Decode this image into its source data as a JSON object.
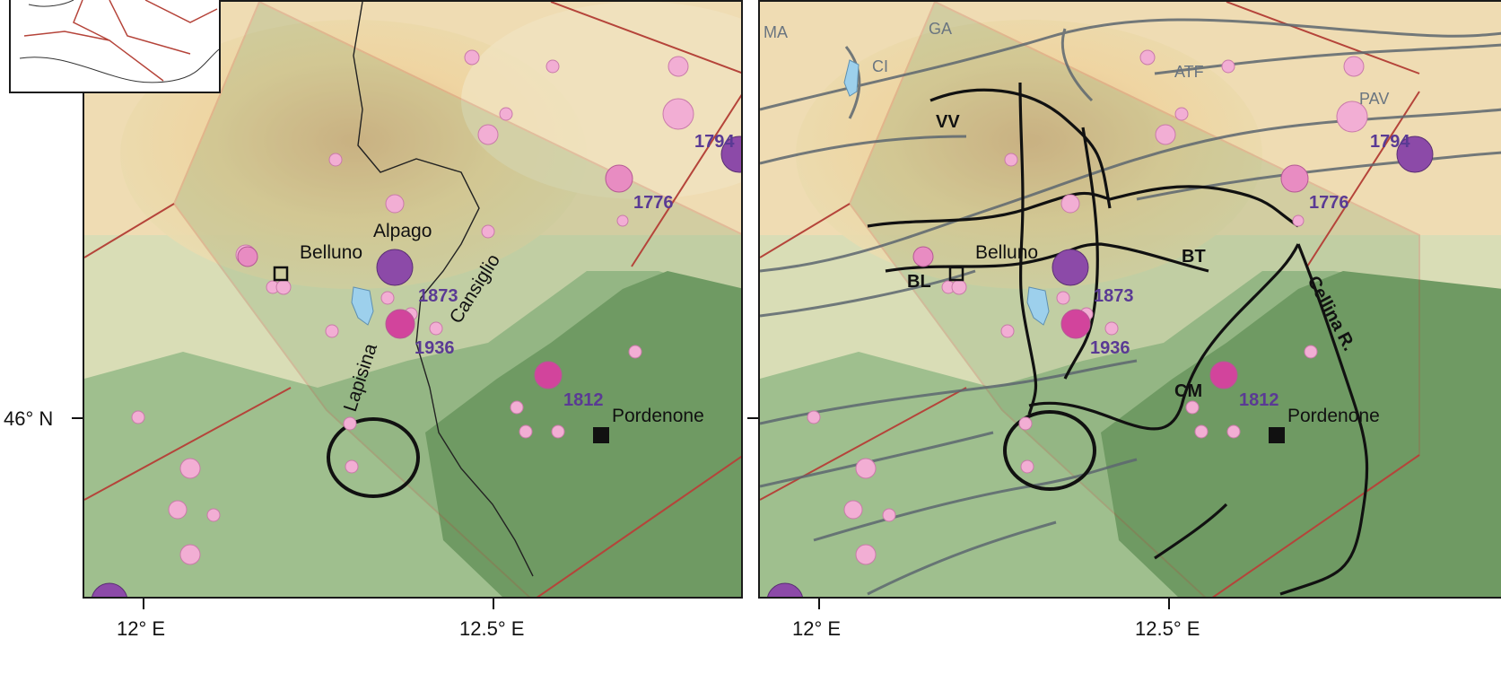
{
  "axes": {
    "lat_label": "46° N",
    "left_x_labels": [
      "12° E",
      "12.5° E"
    ],
    "right_x_labels": [
      "12° E",
      "12.5° E"
    ]
  },
  "left_map": {
    "places": {
      "belluno": "Belluno",
      "alpago": "Alpago",
      "cansiglio": "Cansiglio",
      "lapisina": "Lapisina",
      "pordenone": "Pordenone"
    },
    "years": [
      "1794",
      "1776",
      "1873",
      "1936",
      "1812"
    ]
  },
  "right_map": {
    "places": {
      "belluno": "Belluno",
      "pordenone": "Pordenone",
      "cellina": "Cellina R."
    },
    "faults": [
      "VV",
      "BL",
      "BT",
      "CM"
    ],
    "gray_faults": [
      "MA",
      "GA",
      "CI",
      "ATF",
      "PAV"
    ],
    "years": [
      "1794",
      "1776",
      "1873",
      "1936",
      "1812"
    ]
  },
  "colors": {
    "zone_border": "#b5443a",
    "low_green": "#6f9a63",
    "hill_yellow": "#efd9a2",
    "mountain_orange": "#e2b487",
    "quake_small": "#f2aed4",
    "quake_mid": "#d2449c",
    "quake_large": "#8c4aa8",
    "lake": "#9dd0ec",
    "fault_black": "#111111",
    "fault_gray": "#5d6770",
    "year_text": "#5a3a94"
  }
}
